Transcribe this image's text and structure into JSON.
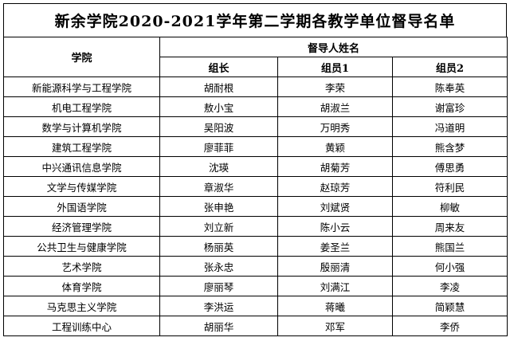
{
  "title": "新余学院2020-2021学年第二学期各教学单位督导名单",
  "headers": {
    "college": "学院",
    "supervisors_group": "督导人姓名",
    "leader": "组长",
    "member1": "组员1",
    "member2": "组员2"
  },
  "rows": [
    {
      "college": "新能源科学与工程学院",
      "leader": "胡耐根",
      "member1": "李荣",
      "member2": "陈奉英"
    },
    {
      "college": "机电工程学院",
      "leader": "敖小宝",
      "member1": "胡淑兰",
      "member2": "谢富珍"
    },
    {
      "college": "数学与计算机学院",
      "leader": "吴阳波",
      "member1": "万明秀",
      "member2": "冯道明"
    },
    {
      "college": "建筑工程学院",
      "leader": "廖菲菲",
      "member1": "黄颖",
      "member2": "熊含梦"
    },
    {
      "college": "中兴通讯信息学院",
      "leader": "沈瑛",
      "member1": "胡菊芳",
      "member2": "傅思勇"
    },
    {
      "college": "文学与传媒学院",
      "leader": "章淑华",
      "member1": "赵琼芳",
      "member2": "符利民"
    },
    {
      "college": "外国语学院",
      "leader": "张申艳",
      "member1": "刘斌贤",
      "member2": "柳敏"
    },
    {
      "college": "经济管理学院",
      "leader": "刘立新",
      "member1": "陈小云",
      "member2": "周来友"
    },
    {
      "college": "公共卫生与健康学院",
      "leader": "杨丽英",
      "member1": "姜圣兰",
      "member2": "熊国兰"
    },
    {
      "college": "艺术学院",
      "leader": "张永忠",
      "member1": "殷丽清",
      "member2": "何小强"
    },
    {
      "college": "体育学院",
      "leader": "廖丽琴",
      "member1": "刘满江",
      "member2": "李凌"
    },
    {
      "college": "马克思主义学院",
      "leader": "李洪运",
      "member1": "蒋曦",
      "member2": "简颖慧"
    },
    {
      "college": "工程训练中心",
      "leader": "胡丽华",
      "member1": "邓军",
      "member2": "李侨"
    }
  ]
}
